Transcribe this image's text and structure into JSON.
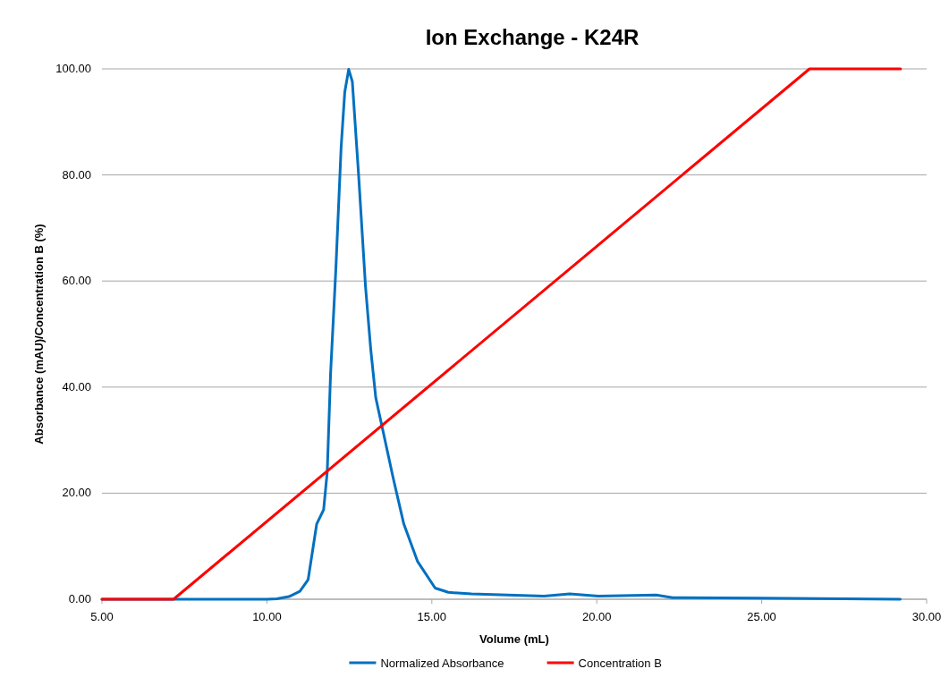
{
  "chart_data": {
    "type": "line",
    "title": "Ion Exchange - K24R",
    "xlabel": "Volume (mL)",
    "ylabel": "Absorbance (mAU)/Concentration B (%)",
    "xlim": [
      5,
      30
    ],
    "xticks": [
      {
        "value": 5,
        "label": "5.00"
      },
      {
        "value": 10,
        "label": "10.00"
      },
      {
        "value": 15,
        "label": "15.00"
      },
      {
        "value": 20,
        "label": "20.00"
      },
      {
        "value": 25,
        "label": "25.00"
      },
      {
        "value": 30,
        "label": "30.00"
      }
    ],
    "ylim": [
      0,
      100
    ],
    "yticks": [
      {
        "value": 0,
        "label": "0.00"
      },
      {
        "value": 20,
        "label": "20.00"
      },
      {
        "value": 40,
        "label": "40.00"
      },
      {
        "value": 60,
        "label": "60.00"
      },
      {
        "value": 80,
        "label": "80.00"
      },
      {
        "value": 100,
        "label": "100.00"
      }
    ],
    "grid": "y",
    "legend": "bottom",
    "marker": "none",
    "line_style": "solid",
    "series": [
      {
        "name": "Normalized Absorbance",
        "color": "#0070c0",
        "x": [
          5,
          10,
          10.3,
          10.67,
          11.0,
          11.25,
          11.51,
          11.72,
          11.83,
          11.93,
          12.09,
          12.25,
          12.36,
          12.48,
          12.59,
          12.78,
          12.99,
          13.15,
          13.3,
          13.51,
          13.83,
          14.15,
          14.57,
          15.1,
          15.5,
          16.2,
          18.4,
          19.18,
          20.05,
          21.8,
          22.3,
          24.95,
          29.2
        ],
        "values": [
          0,
          0,
          0.1,
          0.5,
          1.5,
          3.7,
          14.2,
          16.9,
          24.1,
          42.5,
          62.2,
          85.2,
          95.6,
          99.9,
          97.6,
          80,
          58.9,
          47,
          38,
          32,
          22.8,
          14.2,
          7.1,
          2.1,
          1.3,
          1.0,
          0.6,
          1.0,
          0.6,
          0.8,
          0.3,
          0.2,
          0
        ]
      },
      {
        "name": "Concentration B",
        "color": "#ff0000",
        "x": [
          5,
          7.17,
          26.45,
          29.21
        ],
        "values": [
          0,
          0,
          100,
          100
        ]
      }
    ]
  }
}
